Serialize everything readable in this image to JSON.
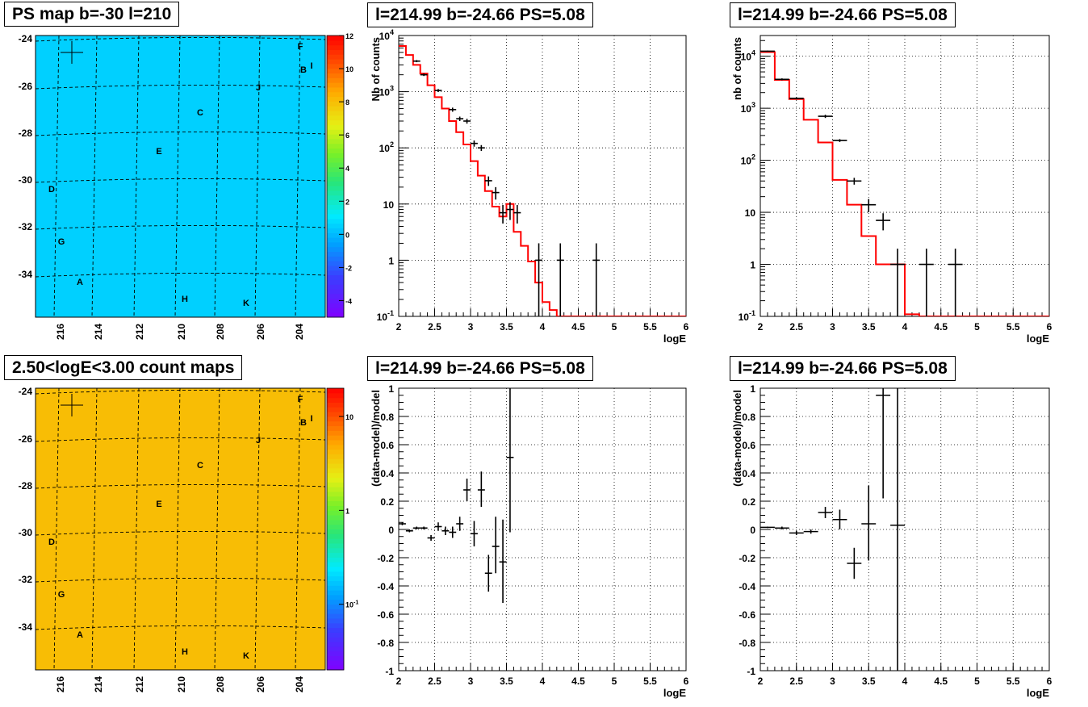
{
  "chart_data": [
    {
      "type": "heatmap",
      "title": "PS map b=-30 l=210",
      "x_tick_labels": [
        "216",
        "214",
        "212",
        "210",
        "208",
        "206",
        "204"
      ],
      "y_tick_labels": [
        "-24",
        "-26",
        "-28",
        "-30",
        "-32",
        "-34"
      ],
      "colorbar_tick_labels": [
        "12",
        "10",
        "8",
        "6",
        "4",
        "2",
        "0",
        "-2",
        "-4"
      ],
      "colorbar_range": [
        -5,
        12
      ],
      "colorbar_scale": "linear",
      "background_value": 0.5,
      "crosshair_label": "+",
      "source_labels": [
        "F",
        "B",
        "I",
        "J",
        "C",
        "E",
        "D",
        "G",
        "A",
        "H",
        "K"
      ],
      "grid": true
    },
    {
      "type": "line",
      "title": "l=214.99 b=-24.66 PS=5.08",
      "xlabel": "logE",
      "ylabel": "Nb of counts",
      "xlim": [
        2,
        6
      ],
      "ylim": [
        0.1,
        10000
      ],
      "yscale": "log",
      "x_tick_labels": [
        "2",
        "2.5",
        "3",
        "3.5",
        "4",
        "4.5",
        "5",
        "5.5",
        "6"
      ],
      "y_tick_labels": [
        "10^-1",
        "1",
        "10",
        "10^2",
        "10^3",
        "10^4"
      ],
      "series": [
        {
          "color": "#ff0000",
          "style": "step",
          "edges": [
            2,
            2.1,
            2.2,
            2.3,
            2.4,
            2.5,
            2.6,
            2.7,
            2.8,
            2.9,
            3.0,
            3.1,
            3.2,
            3.3,
            3.4,
            3.5,
            3.6,
            3.7,
            3.8,
            3.9,
            4.0,
            4.1,
            4.2,
            4.3,
            6.0
          ],
          "values": [
            6500,
            4500,
            3000,
            2100,
            1300,
            800,
            500,
            300,
            190,
            115,
            58,
            32,
            17,
            9,
            6,
            10,
            3.2,
            1.8,
            0.95,
            0.4,
            0.18,
            0.13,
            0.1,
            0.1
          ]
        },
        {
          "color": "#000000",
          "style": "errorbars",
          "points": [
            {
              "x": 2.25,
              "y": 3500,
              "xerr": 0.05,
              "ylo": 3350,
              "yhi": 3650
            },
            {
              "x": 2.35,
              "y": 2000,
              "xerr": 0.05,
              "ylo": 1900,
              "yhi": 2100
            },
            {
              "x": 2.55,
              "y": 1050,
              "xerr": 0.05,
              "ylo": 985,
              "yhi": 1115
            },
            {
              "x": 2.75,
              "y": 480,
              "xerr": 0.05,
              "ylo": 440,
              "yhi": 520
            },
            {
              "x": 2.85,
              "y": 330,
              "xerr": 0.05,
              "ylo": 300,
              "yhi": 360
            },
            {
              "x": 2.95,
              "y": 300,
              "xerr": 0.05,
              "ylo": 270,
              "yhi": 330
            },
            {
              "x": 3.05,
              "y": 120,
              "xerr": 0.05,
              "ylo": 105,
              "yhi": 135
            },
            {
              "x": 3.15,
              "y": 100,
              "xerr": 0.05,
              "ylo": 88,
              "yhi": 112
            },
            {
              "x": 3.25,
              "y": 26,
              "xerr": 0.05,
              "ylo": 21,
              "yhi": 31
            },
            {
              "x": 3.35,
              "y": 16,
              "xerr": 0.05,
              "ylo": 12,
              "yhi": 20
            },
            {
              "x": 3.45,
              "y": 7,
              "xerr": 0.05,
              "ylo": 4.5,
              "yhi": 9.6
            },
            {
              "x": 3.55,
              "y": 8,
              "xerr": 0.05,
              "ylo": 5.2,
              "yhi": 10.8
            },
            {
              "x": 3.65,
              "y": 7,
              "xerr": 0.05,
              "ylo": 4.5,
              "yhi": 9.6
            },
            {
              "x": 3.95,
              "y": 1,
              "xerr": 0.05,
              "ylo": 0.1,
              "yhi": 2
            },
            {
              "x": 4.25,
              "y": 1,
              "xerr": 0.05,
              "ylo": 0.1,
              "yhi": 2
            },
            {
              "x": 4.75,
              "y": 1,
              "xerr": 0.05,
              "ylo": 0.1,
              "yhi": 2
            }
          ]
        }
      ],
      "grid": true
    },
    {
      "type": "line",
      "title": "l=214.99 b=-24.66 PS=5.08",
      "xlabel": "logE",
      "ylabel": "nb of counts",
      "xlim": [
        2,
        6
      ],
      "ylim": [
        0.1,
        25000
      ],
      "yscale": "log",
      "x_tick_labels": [
        "2",
        "2.5",
        "3",
        "3.5",
        "4",
        "4.5",
        "5",
        "5.5",
        "6"
      ],
      "y_tick_labels": [
        "10^-1",
        "1",
        "10",
        "10^2",
        "10^3",
        "10^4"
      ],
      "series": [
        {
          "color": "#ff0000",
          "style": "step",
          "edges": [
            2,
            2.2,
            2.4,
            2.6,
            2.8,
            3.0,
            3.2,
            3.4,
            3.6,
            3.8,
            4.0,
            4.2,
            6.0
          ],
          "values": [
            12000,
            3500,
            1500,
            600,
            220,
            42,
            14,
            3.5,
            1,
            1,
            0.11,
            0.1
          ]
        },
        {
          "color": "#000000",
          "style": "errorbars",
          "points": [
            {
              "x": 2.1,
              "y": 12500,
              "xerr": 0.1,
              "ylo": 12200,
              "yhi": 12800
            },
            {
              "x": 2.3,
              "y": 3600,
              "xerr": 0.1,
              "ylo": 3450,
              "yhi": 3750
            },
            {
              "x": 2.5,
              "y": 1550,
              "xerr": 0.1,
              "ylo": 1480,
              "yhi": 1620
            },
            {
              "x": 2.9,
              "y": 700,
              "xerr": 0.1,
              "ylo": 650,
              "yhi": 750
            },
            {
              "x": 3.1,
              "y": 240,
              "xerr": 0.1,
              "ylo": 225,
              "yhi": 255
            },
            {
              "x": 3.3,
              "y": 40,
              "xerr": 0.1,
              "ylo": 34,
              "yhi": 46
            },
            {
              "x": 3.5,
              "y": 14,
              "xerr": 0.1,
              "ylo": 10,
              "yhi": 18
            },
            {
              "x": 3.7,
              "y": 7,
              "xerr": 0.1,
              "ylo": 4.5,
              "yhi": 9.6
            },
            {
              "x": 3.9,
              "y": 1,
              "xerr": 0.1,
              "ylo": 0.1,
              "yhi": 2
            },
            {
              "x": 4.3,
              "y": 1,
              "xerr": 0.1,
              "ylo": 0.1,
              "yhi": 2
            },
            {
              "x": 4.7,
              "y": 1,
              "xerr": 0.1,
              "ylo": 0.1,
              "yhi": 2
            }
          ]
        }
      ],
      "grid": true
    },
    {
      "type": "heatmap",
      "title": "2.50<logE<3.00 count maps",
      "x_tick_labels": [
        "216",
        "214",
        "212",
        "210",
        "208",
        "206",
        "204"
      ],
      "y_tick_labels": [
        "-24",
        "-26",
        "-28",
        "-30",
        "-32",
        "-34"
      ],
      "colorbar_tick_labels": [
        "10",
        "1",
        "10^-1"
      ],
      "colorbar_range": [
        0.02,
        20
      ],
      "colorbar_scale": "log",
      "background_value": 4,
      "crosshair_label": "+",
      "source_labels": [
        "F",
        "B",
        "I",
        "J",
        "C",
        "E",
        "D",
        "G",
        "A",
        "H",
        "K"
      ],
      "grid": true
    },
    {
      "type": "scatter",
      "title": "l=214.99 b=-24.66 PS=5.08",
      "xlabel": "logE",
      "ylabel": "(data-model)/model",
      "xlim": [
        2,
        6
      ],
      "ylim": [
        -1,
        1
      ],
      "x_tick_labels": [
        "2",
        "2.5",
        "3",
        "3.5",
        "4",
        "4.5",
        "5",
        "5.5",
        "6"
      ],
      "y_tick_labels": [
        "1",
        "0.8",
        "0.6",
        "0.4",
        "0.2",
        "0",
        "-0.2",
        "-0.4",
        "-0.6",
        "-0.8",
        "-1"
      ],
      "series": [
        {
          "color": "#000000",
          "style": "errorbars",
          "points": [
            {
              "x": 2.05,
              "y": 0.04,
              "xerr": 0.05,
              "ylo": 0.03,
              "yhi": 0.05
            },
            {
              "x": 2.15,
              "y": -0.01,
              "xerr": 0.05,
              "ylo": -0.02,
              "yhi": 0.0
            },
            {
              "x": 2.25,
              "y": 0.01,
              "xerr": 0.05,
              "ylo": 0.0,
              "yhi": 0.02
            },
            {
              "x": 2.35,
              "y": 0.01,
              "xerr": 0.05,
              "ylo": 0.0,
              "yhi": 0.02
            },
            {
              "x": 2.45,
              "y": -0.06,
              "xerr": 0.05,
              "ylo": -0.08,
              "yhi": -0.04
            },
            {
              "x": 2.55,
              "y": 0.02,
              "xerr": 0.05,
              "ylo": -0.01,
              "yhi": 0.05
            },
            {
              "x": 2.65,
              "y": -0.01,
              "xerr": 0.05,
              "ylo": -0.04,
              "yhi": 0.02
            },
            {
              "x": 2.75,
              "y": -0.02,
              "xerr": 0.05,
              "ylo": -0.06,
              "yhi": 0.02
            },
            {
              "x": 2.85,
              "y": 0.04,
              "xerr": 0.05,
              "ylo": -0.01,
              "yhi": 0.09
            },
            {
              "x": 2.95,
              "y": 0.28,
              "xerr": 0.05,
              "ylo": 0.2,
              "yhi": 0.36
            },
            {
              "x": 3.05,
              "y": -0.03,
              "xerr": 0.05,
              "ylo": -0.12,
              "yhi": 0.06
            },
            {
              "x": 3.15,
              "y": 0.28,
              "xerr": 0.05,
              "ylo": 0.16,
              "yhi": 0.41
            },
            {
              "x": 3.25,
              "y": -0.31,
              "xerr": 0.05,
              "ylo": -0.44,
              "yhi": -0.18
            },
            {
              "x": 3.35,
              "y": -0.12,
              "xerr": 0.05,
              "ylo": -0.31,
              "yhi": 0.09
            },
            {
              "x": 3.45,
              "y": -0.23,
              "xerr": 0.05,
              "ylo": -0.52,
              "yhi": 0.07
            },
            {
              "x": 3.55,
              "y": 0.51,
              "xerr": 0.05,
              "ylo": -0.02,
              "yhi": 1.0
            }
          ]
        }
      ],
      "grid": true
    },
    {
      "type": "scatter",
      "title": "l=214.99 b=-24.66 PS=5.08",
      "xlabel": "logE",
      "ylabel": "(data-model)/model",
      "xlim": [
        2,
        6
      ],
      "ylim": [
        -1,
        1
      ],
      "x_tick_labels": [
        "2",
        "2.5",
        "3",
        "3.5",
        "4",
        "4.5",
        "5",
        "5.5",
        "6"
      ],
      "y_tick_labels": [
        "1",
        "0.8",
        "0.6",
        "0.4",
        "0.2",
        "0",
        "-0.2",
        "-0.4",
        "-0.6",
        "-0.8",
        "-1"
      ],
      "series": [
        {
          "color": "#000000",
          "style": "errorbars",
          "points": [
            {
              "x": 2.1,
              "y": 0.015,
              "xerr": 0.1,
              "ylo": 0.01,
              "yhi": 0.02
            },
            {
              "x": 2.3,
              "y": 0.01,
              "xerr": 0.1,
              "ylo": 0.0,
              "yhi": 0.02
            },
            {
              "x": 2.5,
              "y": -0.025,
              "xerr": 0.1,
              "ylo": -0.04,
              "yhi": -0.01
            },
            {
              "x": 2.7,
              "y": -0.015,
              "xerr": 0.1,
              "ylo": -0.03,
              "yhi": 0.0
            },
            {
              "x": 2.9,
              "y": 0.12,
              "xerr": 0.1,
              "ylo": 0.08,
              "yhi": 0.16
            },
            {
              "x": 3.1,
              "y": 0.07,
              "xerr": 0.1,
              "ylo": 0.0,
              "yhi": 0.14
            },
            {
              "x": 3.3,
              "y": -0.24,
              "xerr": 0.1,
              "ylo": -0.35,
              "yhi": -0.13
            },
            {
              "x": 3.5,
              "y": 0.04,
              "xerr": 0.1,
              "ylo": -0.22,
              "yhi": 0.31
            },
            {
              "x": 3.7,
              "y": 0.95,
              "xerr": 0.1,
              "ylo": 0.22,
              "yhi": 1.0
            },
            {
              "x": 3.9,
              "y": 0.03,
              "xerr": 0.1,
              "ylo": -1.0,
              "yhi": 1.0
            }
          ]
        }
      ],
      "grid": true
    }
  ]
}
